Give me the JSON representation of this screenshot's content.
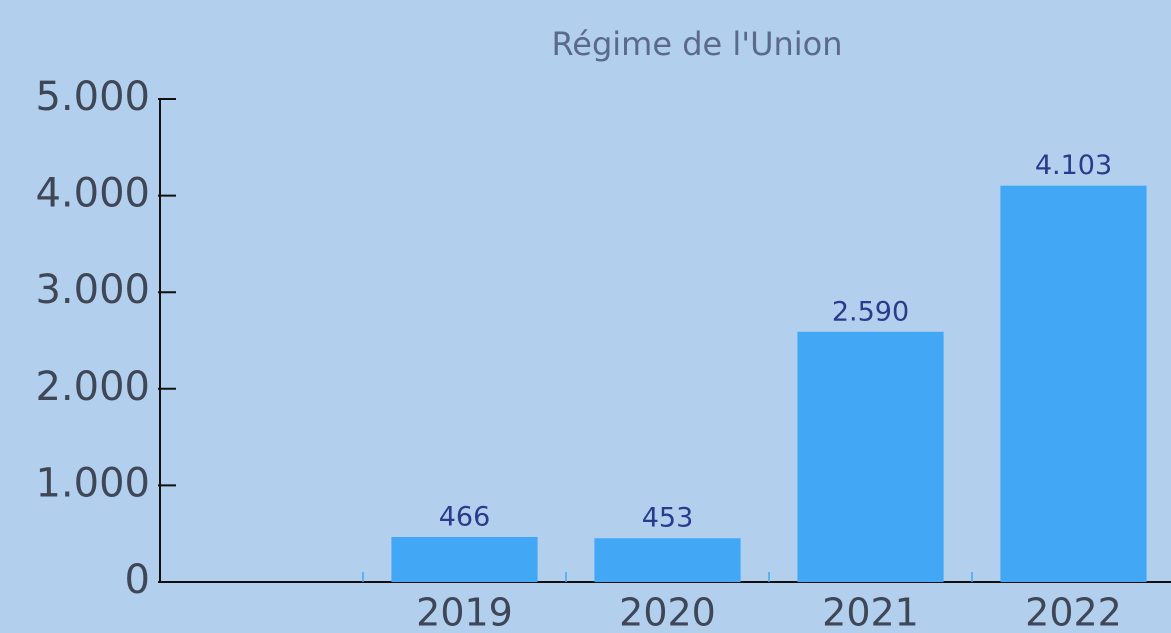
{
  "chart_data": {
    "type": "bar",
    "title": "Régime de l'Union",
    "categories": [
      null,
      "2019",
      "2020",
      "2021",
      "2022"
    ],
    "values": [
      null,
      466,
      453,
      2590,
      4103
    ],
    "value_labels": [
      null,
      "466",
      "453",
      "2.590",
      "4.103"
    ],
    "color": "#42a8f5",
    "ylim": [
      0,
      5000
    ],
    "yticks": [
      0,
      {
        "value": 1000,
        "label": "1.000"
      },
      {
        "value": 2000,
        "label": "2.000"
      },
      {
        "value": 3000,
        "label": "3.000"
      },
      {
        "value": 4000,
        "label": "4.000"
      },
      {
        "value": 5000,
        "label": "5.000"
      }
    ],
    "grid": false
  }
}
